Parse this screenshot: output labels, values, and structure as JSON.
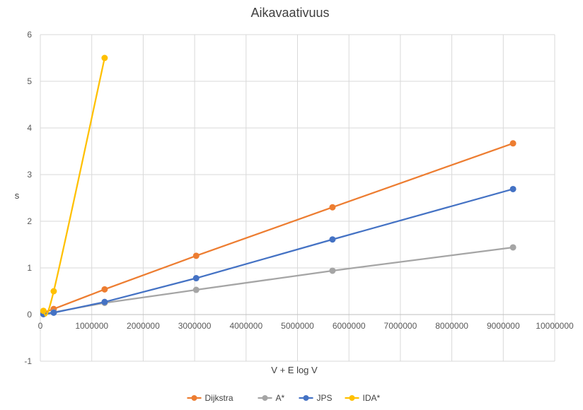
{
  "chart_data": {
    "type": "scatter",
    "title": "Aikavaativuus",
    "xlabel": "V + E log V",
    "ylabel": "s",
    "xlim": [
      0,
      10000000
    ],
    "ylim": [
      -1,
      6
    ],
    "x_ticks": [
      "0",
      "1000000",
      "2000000",
      "3000000",
      "4000000",
      "5000000",
      "6000000",
      "7000000",
      "8000000",
      "9000000",
      "10000000"
    ],
    "y_ticks": [
      "-1",
      "0",
      "1",
      "2",
      "3",
      "4",
      "5",
      "6"
    ],
    "x_tick_values": [
      0,
      1000000,
      2000000,
      3000000,
      4000000,
      5000000,
      6000000,
      7000000,
      8000000,
      9000000,
      10000000
    ],
    "y_tick_values": [
      -1,
      0,
      1,
      2,
      3,
      4,
      5,
      6
    ],
    "grid": true,
    "legend_position": "bottom",
    "series": [
      {
        "name": "Dijkstra",
        "color": "#ED7D31",
        "smooth": false,
        "points": [
          [
            60000,
            0.04
          ],
          [
            260000,
            0.12
          ],
          [
            1250000,
            0.54
          ],
          [
            3030000,
            1.26
          ],
          [
            5680000,
            2.3
          ],
          [
            9190000,
            3.67
          ]
        ]
      },
      {
        "name": "A*",
        "color": "#A5A5A5",
        "smooth": false,
        "points": [
          [
            60000,
            0.01
          ],
          [
            260000,
            0.05
          ],
          [
            1250000,
            0.25
          ],
          [
            3030000,
            0.53
          ],
          [
            5680000,
            0.94
          ],
          [
            9190000,
            1.44
          ]
        ]
      },
      {
        "name": "JPS",
        "color": "#4472C4",
        "smooth": false,
        "points": [
          [
            60000,
            0.01
          ],
          [
            260000,
            0.04
          ],
          [
            1250000,
            0.27
          ],
          [
            3030000,
            0.78
          ],
          [
            5680000,
            1.61
          ],
          [
            9190000,
            2.69
          ]
        ]
      },
      {
        "name": "IDA*",
        "color": "#FFC000",
        "smooth": true,
        "points": [
          [
            60000,
            0.08
          ],
          [
            260000,
            0.5
          ],
          [
            1250000,
            5.5
          ]
        ]
      }
    ]
  }
}
